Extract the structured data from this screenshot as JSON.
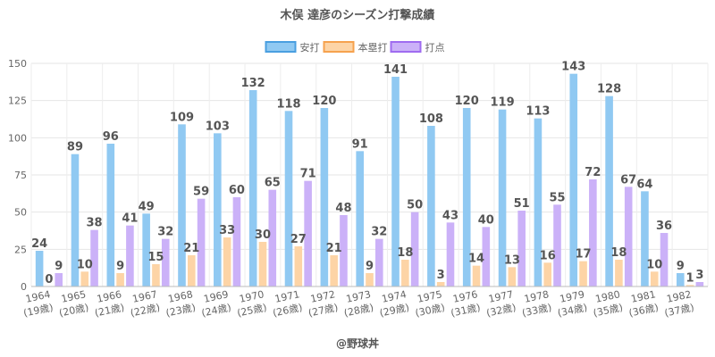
{
  "chart_data": {
    "type": "bar",
    "title": "木俣 達彦のシーズン打撃成績",
    "source": "@野球丼",
    "ylim": [
      0,
      150
    ],
    "yticks": [
      0,
      25,
      50,
      75,
      100,
      125,
      150
    ],
    "grid": true,
    "legend_position": "top-center",
    "categories": [
      [
        "1964",
        "(19歳)"
      ],
      [
        "1965",
        "(20歳)"
      ],
      [
        "1966",
        "(21歳)"
      ],
      [
        "1967",
        "(22歳)"
      ],
      [
        "1968",
        "(23歳)"
      ],
      [
        "1969",
        "(24歳)"
      ],
      [
        "1970",
        "(25歳)"
      ],
      [
        "1971",
        "(26歳)"
      ],
      [
        "1972",
        "(27歳)"
      ],
      [
        "1973",
        "(28歳)"
      ],
      [
        "1974",
        "(29歳)"
      ],
      [
        "1975",
        "(30歳)"
      ],
      [
        "1976",
        "(31歳)"
      ],
      [
        "1977",
        "(32歳)"
      ],
      [
        "1978",
        "(33歳)"
      ],
      [
        "1979",
        "(34歳)"
      ],
      [
        "1980",
        "(35歳)"
      ],
      [
        "1981",
        "(36歳)"
      ],
      [
        "1982",
        "(37歳)"
      ]
    ],
    "series": [
      {
        "name": "安打",
        "color": "#90C9F2",
        "border": "#4A9FE0",
        "values": [
          24,
          89,
          96,
          49,
          109,
          103,
          132,
          118,
          120,
          91,
          141,
          108,
          120,
          119,
          113,
          143,
          128,
          64,
          9
        ]
      },
      {
        "name": "本塁打",
        "color": "#FDD4A6",
        "border": "#F6A24E",
        "values": [
          0,
          10,
          9,
          15,
          21,
          33,
          30,
          27,
          21,
          9,
          18,
          3,
          14,
          13,
          16,
          17,
          18,
          10,
          1
        ]
      },
      {
        "name": "打点",
        "color": "#CBB1F8",
        "border": "#9F6BF0",
        "values": [
          9,
          38,
          41,
          32,
          59,
          60,
          65,
          71,
          48,
          32,
          50,
          43,
          40,
          51,
          55,
          72,
          67,
          36,
          3
        ]
      }
    ]
  }
}
